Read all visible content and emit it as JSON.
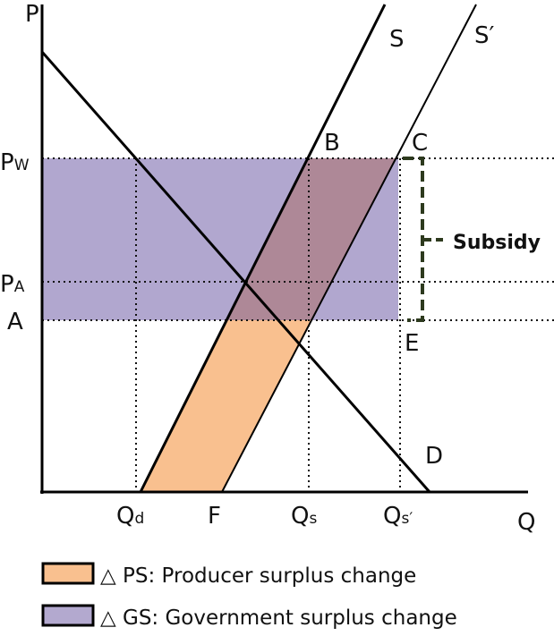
{
  "axes": {
    "y": "P",
    "x": "Q"
  },
  "curves": {
    "supply": "S",
    "supply_shifted": "S′"
  },
  "price_labels": {
    "world": {
      "main": "P",
      "sub": "W"
    },
    "autarky": {
      "main": "P",
      "sub": "A"
    },
    "subsidized": "A"
  },
  "points": {
    "b": "B",
    "c": "C",
    "d": "D",
    "e": "E"
  },
  "annotation": "Subsidy",
  "quantity_labels": {
    "demand": {
      "main": "Q",
      "sub": "d"
    },
    "f": "F",
    "supply": {
      "main": "Q",
      "sub": "s"
    },
    "supply_shifted": {
      "main": "Q",
      "sub": "s′"
    }
  },
  "legend": [
    "△ PS: Producer surplus change",
    "△ GS: Government surplus change"
  ]
}
